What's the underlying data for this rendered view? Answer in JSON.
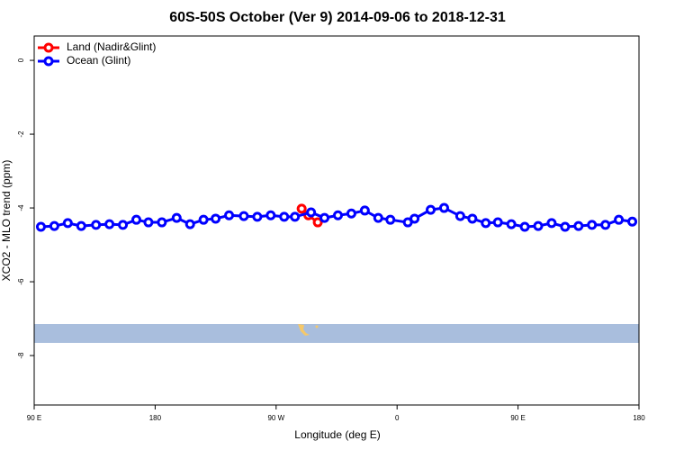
{
  "chart_data": {
    "type": "line",
    "title": "60S-50S October (Ver 9)   2014-09-06 to 2018-12-31",
    "x_label": "Longitude (deg E)",
    "y_label": "XCO2 - MLO trend (ppm)",
    "xlim": [
      90,
      540
    ],
    "xticks": [
      {
        "value": 90,
        "label": "90 E"
      },
      {
        "value": 180,
        "label": "180"
      },
      {
        "value": 270,
        "label": "90 W"
      },
      {
        "value": 360,
        "label": "0"
      },
      {
        "value": 450,
        "label": "90 E"
      },
      {
        "value": 540,
        "label": "180"
      }
    ],
    "ylim": [
      -9.34,
      0.66
    ],
    "yticks": [
      0,
      -2,
      -4,
      -6,
      -8
    ],
    "legend": "topleft",
    "series": [
      {
        "name": "Land (Nadir&Glint)",
        "color": "#ff0000",
        "x": [
          289,
          294,
          301
        ],
        "values": [
          -4.02,
          -4.2,
          -4.39
        ]
      },
      {
        "name": "Ocean (Glint)",
        "color": "#0000ff",
        "x": [
          95,
          105,
          115,
          125,
          136,
          146,
          156,
          166,
          175,
          185,
          196,
          206,
          216,
          225,
          235,
          246,
          256,
          266,
          276,
          284,
          296,
          306,
          316,
          326,
          336,
          346,
          355,
          368,
          373,
          385,
          395,
          407,
          416,
          426,
          435,
          445,
          455,
          465,
          475,
          485,
          495,
          505,
          515,
          525,
          535
        ],
        "values": [
          -4.51,
          -4.49,
          -4.41,
          -4.49,
          -4.46,
          -4.44,
          -4.46,
          -4.32,
          -4.39,
          -4.39,
          -4.27,
          -4.44,
          -4.32,
          -4.29,
          -4.2,
          -4.22,
          -4.24,
          -4.2,
          -4.24,
          -4.24,
          -4.12,
          -4.27,
          -4.2,
          -4.15,
          -4.07,
          -4.27,
          -4.32,
          -4.39,
          -4.29,
          -4.05,
          -4.0,
          -4.22,
          -4.29,
          -4.41,
          -4.39,
          -4.44,
          -4.51,
          -4.49,
          -4.41,
          -4.51,
          -4.49,
          -4.46,
          -4.46,
          -4.32,
          -4.37
        ]
      }
    ]
  }
}
